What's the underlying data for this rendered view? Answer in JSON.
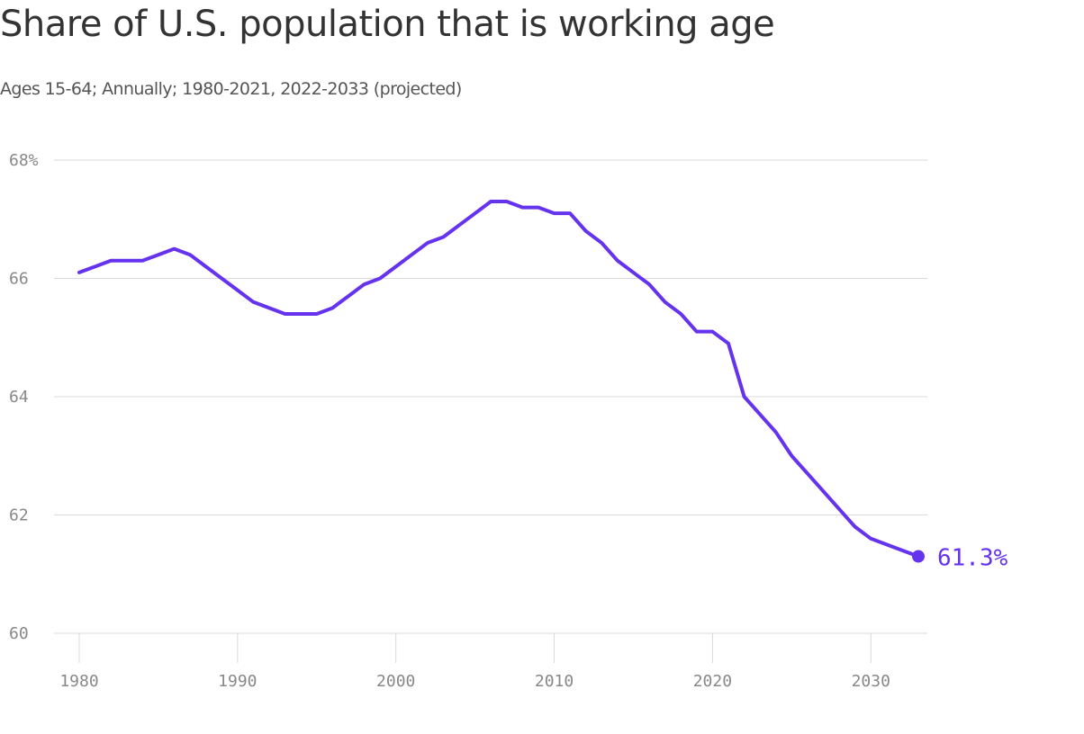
{
  "chart_data": {
    "type": "line",
    "title": "Share of U.S. population that is working age",
    "subtitle": "Ages 15-64; Annually; 1980-2021, 2022-2033 (projected)",
    "xlabel": "",
    "ylabel": "",
    "x": [
      1980,
      1981,
      1982,
      1983,
      1984,
      1985,
      1986,
      1987,
      1988,
      1989,
      1990,
      1991,
      1992,
      1993,
      1994,
      1995,
      1996,
      1997,
      1998,
      1999,
      2000,
      2001,
      2002,
      2003,
      2004,
      2005,
      2006,
      2007,
      2008,
      2009,
      2010,
      2011,
      2012,
      2013,
      2014,
      2015,
      2016,
      2017,
      2018,
      2019,
      2020,
      2021,
      2022,
      2023,
      2024,
      2025,
      2026,
      2027,
      2028,
      2029,
      2030,
      2031,
      2032,
      2033
    ],
    "series": [
      {
        "values": [
          66.1,
          66.2,
          66.3,
          66.3,
          66.3,
          66.4,
          66.5,
          66.4,
          66.2,
          66.0,
          65.8,
          65.6,
          65.5,
          65.4,
          65.4,
          65.4,
          65.5,
          65.7,
          65.9,
          66.0,
          66.2,
          66.4,
          66.6,
          66.7,
          66.9,
          67.1,
          67.3,
          67.3,
          67.2,
          67.2,
          67.1,
          67.1,
          66.8,
          66.6,
          66.3,
          66.1,
          65.9,
          65.6,
          65.4,
          65.1,
          65.1,
          64.9,
          64.0,
          63.7,
          63.4,
          63.0,
          62.7,
          62.4,
          62.1,
          61.8,
          61.6,
          61.5,
          61.4,
          61.3
        ],
        "color": "#6533ee"
      }
    ],
    "xlim": [
      1980,
      2033
    ],
    "ylim": [
      60,
      68
    ],
    "x_ticks": [
      1980,
      1990,
      2000,
      2010,
      2020,
      2030
    ],
    "x_tick_labels": [
      "1980",
      "1990",
      "2000",
      "2010",
      "2020",
      "2030"
    ],
    "y_ticks": [
      60,
      62,
      64,
      66,
      68
    ],
    "y_tick_labels": [
      "60",
      "62",
      "64",
      "66",
      "68%"
    ],
    "end_label": "61.3%",
    "grid": true,
    "grid_color": "#d9d9d9",
    "line_color": "#6533ee",
    "tick_text_color": "#888888"
  }
}
